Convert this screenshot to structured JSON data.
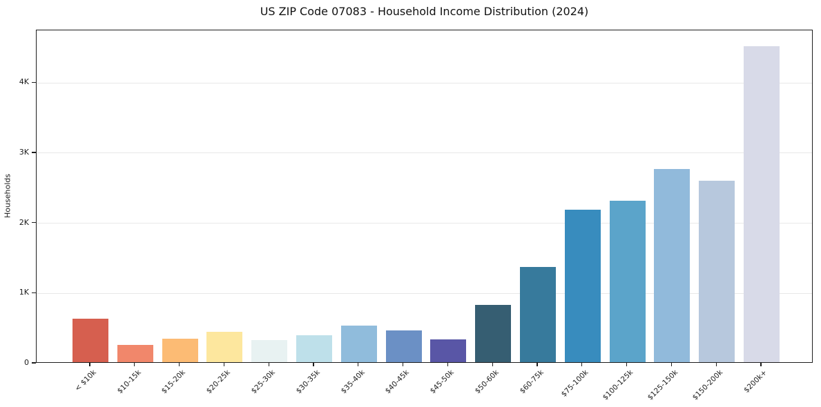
{
  "title": "US ZIP Code 07083 - Household Income Distribution (2024)",
  "chart_data": {
    "type": "bar",
    "title": "US ZIP Code 07083 - Household Income Distribution (2024)",
    "xlabel": "",
    "ylabel": "Households",
    "ylim": [
      0,
      4750
    ],
    "grid": "horizontal-light",
    "legend": "none",
    "yticks": [
      {
        "label": "0",
        "value": 0
      },
      {
        "label": "1K",
        "value": 1000
      },
      {
        "label": "2K",
        "value": 2000
      },
      {
        "label": "3K",
        "value": 3000
      },
      {
        "label": "4K",
        "value": 4000
      }
    ],
    "categories": [
      "< $10k",
      "$10-15k",
      "$15-20k",
      "$20-25k",
      "$25-30k",
      "$30-35k",
      "$35-40k",
      "$40-45k",
      "$45-50k",
      "$50-60k",
      "$60-75k",
      "$75-100k",
      "$100-125k",
      "$125-150k",
      "$150-200k",
      "$200k+"
    ],
    "values": [
      620,
      250,
      335,
      430,
      310,
      385,
      520,
      455,
      320,
      815,
      1355,
      2175,
      2300,
      2750,
      2585,
      4500
    ],
    "bar_colors": [
      "#d65f4f",
      "#f1876b",
      "#fcbb74",
      "#fde79e",
      "#e8f2f2",
      "#bee0ea",
      "#90bcdc",
      "#6b90c5",
      "#5956a6",
      "#365e72",
      "#377a9c",
      "#388cbe",
      "#5ba4ca",
      "#91badb",
      "#b7c8dd",
      "#d8dae8"
    ],
    "axis_color": "#1c1c1c",
    "gridline_color": "#e8e8e8",
    "background_color": "#ffffff"
  }
}
